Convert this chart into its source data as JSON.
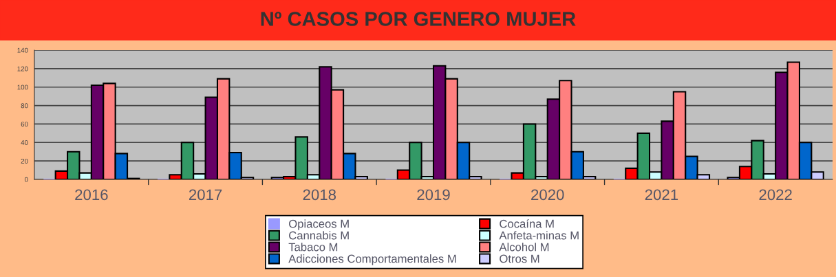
{
  "chart_data": {
    "type": "bar",
    "title": "Nº CASOS POR GENERO MUJER",
    "categories": [
      "2016",
      "2017",
      "2018",
      "2019",
      "2020",
      "2021",
      "2022"
    ],
    "series": [
      {
        "name": "Opiaceos M",
        "color": "#9999ff",
        "values": [
          0,
          0,
          2,
          0,
          0,
          0,
          2
        ]
      },
      {
        "name": "Cocaína M",
        "color": "#ff0000",
        "values": [
          9,
          5,
          3,
          10,
          7,
          12,
          14
        ]
      },
      {
        "name": "Cannabis M",
        "color": "#339966",
        "values": [
          30,
          40,
          46,
          40,
          60,
          50,
          42
        ]
      },
      {
        "name": "Anfeta-minas M",
        "color": "#ccffff",
        "values": [
          7,
          6,
          5,
          3,
          3,
          8,
          6
        ]
      },
      {
        "name": "Tabaco M",
        "color": "#660066",
        "values": [
          102,
          89,
          122,
          123,
          87,
          63,
          116
        ]
      },
      {
        "name": "Alcohol M",
        "color": "#ff8080",
        "values": [
          104,
          109,
          97,
          109,
          107,
          95,
          127
        ]
      },
      {
        "name": "Adicciones Comportamentales M",
        "color": "#0066cc",
        "values": [
          28,
          29,
          28,
          40,
          30,
          25,
          40
        ]
      },
      {
        "name": "Otros M",
        "color": "#ccccff",
        "values": [
          1,
          2,
          3,
          3,
          3,
          5,
          8
        ]
      }
    ],
    "ylim": [
      0,
      140
    ],
    "yticks": [
      0,
      20,
      40,
      60,
      80,
      100,
      120,
      140
    ],
    "grid": "y",
    "legend": "bottom"
  }
}
